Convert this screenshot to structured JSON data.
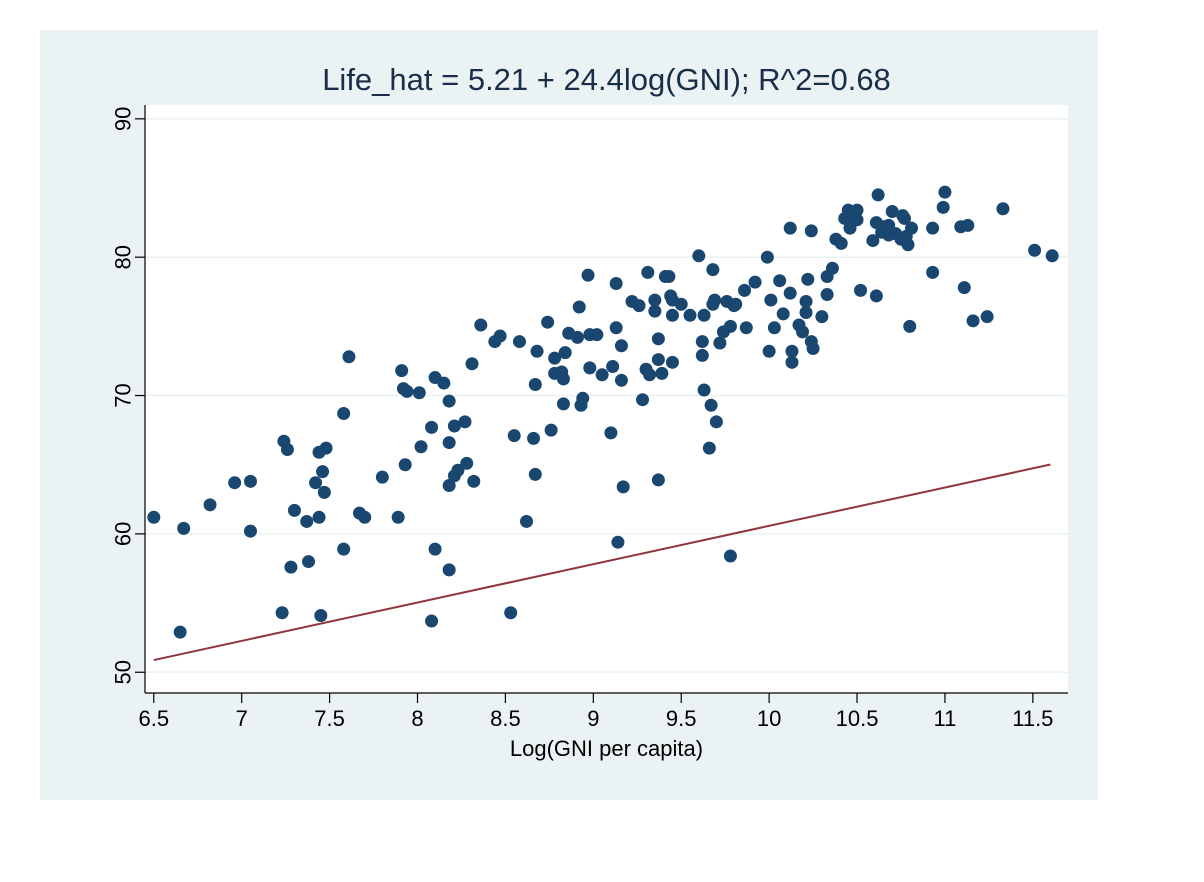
{
  "colors": {
    "panel_background": "#eaf2f3",
    "plot_background": "#ffffff",
    "grid": "#eaf2f3",
    "axis": "#000000",
    "point": "#1a476f",
    "fit_line": "#90353b",
    "title": "#1a2e4a"
  },
  "chart_data": {
    "type": "scatter",
    "title": "Life_hat = 5.21 + 24.4log(GNI); R^2=0.68",
    "xlabel": "Log(GNI per capita)",
    "ylabel": "",
    "xlim": [
      6.45,
      11.7
    ],
    "ylim": [
      48.5,
      91
    ],
    "xticks": [
      "6.5",
      "7",
      "7.5",
      "8",
      "8.5",
      "9",
      "9.5",
      "10",
      "10.5",
      "11",
      "11.5"
    ],
    "yticks": [
      "50",
      "60",
      "70",
      "80",
      "90"
    ],
    "grid": true,
    "legend": "none",
    "fit_line": {
      "intercept": 5.21,
      "slope": 24.4,
      "x_range": [
        6.5,
        11.6
      ]
    },
    "points": [
      [
        6.5,
        61.2
      ],
      [
        6.67,
        60.4
      ],
      [
        6.65,
        52.9
      ],
      [
        6.82,
        62.1
      ],
      [
        6.96,
        63.7
      ],
      [
        7.05,
        63.8
      ],
      [
        7.05,
        60.2
      ],
      [
        7.24,
        66.7
      ],
      [
        7.26,
        66.1
      ],
      [
        7.23,
        54.3
      ],
      [
        7.28,
        57.6
      ],
      [
        7.3,
        61.7
      ],
      [
        7.37,
        60.9
      ],
      [
        7.38,
        58.0
      ],
      [
        7.42,
        63.7
      ],
      [
        7.44,
        61.2
      ],
      [
        7.44,
        65.9
      ],
      [
        7.46,
        64.5
      ],
      [
        7.47,
        63.0
      ],
      [
        7.48,
        66.2
      ],
      [
        7.45,
        54.1
      ],
      [
        7.58,
        68.7
      ],
      [
        7.61,
        72.8
      ],
      [
        7.58,
        58.9
      ],
      [
        7.67,
        61.5
      ],
      [
        7.7,
        61.2
      ],
      [
        7.8,
        64.1
      ],
      [
        7.89,
        61.2
      ],
      [
        7.91,
        71.8
      ],
      [
        7.92,
        70.5
      ],
      [
        7.94,
        70.3
      ],
      [
        7.93,
        65.0
      ],
      [
        8.01,
        70.2
      ],
      [
        8.02,
        66.3
      ],
      [
        8.08,
        53.7
      ],
      [
        8.08,
        67.7
      ],
      [
        8.1,
        71.3
      ],
      [
        8.1,
        58.9
      ],
      [
        8.15,
        70.9
      ],
      [
        8.18,
        69.6
      ],
      [
        8.18,
        66.6
      ],
      [
        8.18,
        63.5
      ],
      [
        8.18,
        57.4
      ],
      [
        8.21,
        64.2
      ],
      [
        8.21,
        67.8
      ],
      [
        8.23,
        64.6
      ],
      [
        8.27,
        68.1
      ],
      [
        8.28,
        65.1
      ],
      [
        8.31,
        72.3
      ],
      [
        8.32,
        63.8
      ],
      [
        8.36,
        75.1
      ],
      [
        8.44,
        73.9
      ],
      [
        8.47,
        74.3
      ],
      [
        8.53,
        54.3
      ],
      [
        8.55,
        67.1
      ],
      [
        8.58,
        73.9
      ],
      [
        8.62,
        60.9
      ],
      [
        8.66,
        66.9
      ],
      [
        8.67,
        64.3
      ],
      [
        8.67,
        70.8
      ],
      [
        8.68,
        73.2
      ],
      [
        8.74,
        75.3
      ],
      [
        8.76,
        67.5
      ],
      [
        8.78,
        72.7
      ],
      [
        8.78,
        71.6
      ],
      [
        8.82,
        71.7
      ],
      [
        8.83,
        71.2
      ],
      [
        8.84,
        73.1
      ],
      [
        8.83,
        69.4
      ],
      [
        8.86,
        74.5
      ],
      [
        8.91,
        74.2
      ],
      [
        8.92,
        76.4
      ],
      [
        8.93,
        69.3
      ],
      [
        8.94,
        69.8
      ],
      [
        8.97,
        78.7
      ],
      [
        8.98,
        74.4
      ],
      [
        8.98,
        72.0
      ],
      [
        9.02,
        74.4
      ],
      [
        9.05,
        71.5
      ],
      [
        9.1,
        67.3
      ],
      [
        9.11,
        72.1
      ],
      [
        9.13,
        74.9
      ],
      [
        9.13,
        78.1
      ],
      [
        9.14,
        59.4
      ],
      [
        9.16,
        73.6
      ],
      [
        9.16,
        71.1
      ],
      [
        9.17,
        63.4
      ],
      [
        9.22,
        76.8
      ],
      [
        9.26,
        76.5
      ],
      [
        9.28,
        69.7
      ],
      [
        9.3,
        71.9
      ],
      [
        9.31,
        78.9
      ],
      [
        9.32,
        71.5
      ],
      [
        9.35,
        76.9
      ],
      [
        9.35,
        76.1
      ],
      [
        9.37,
        72.6
      ],
      [
        9.37,
        74.1
      ],
      [
        9.37,
        63.9
      ],
      [
        9.39,
        71.6
      ],
      [
        9.41,
        78.6
      ],
      [
        9.43,
        78.6
      ],
      [
        9.44,
        77.2
      ],
      [
        9.45,
        76.9
      ],
      [
        9.45,
        72.4
      ],
      [
        9.45,
        75.8
      ],
      [
        9.5,
        76.6
      ],
      [
        9.55,
        75.8
      ],
      [
        9.6,
        80.1
      ],
      [
        9.62,
        73.9
      ],
      [
        9.62,
        72.9
      ],
      [
        9.63,
        70.4
      ],
      [
        9.63,
        75.8
      ],
      [
        9.66,
        66.2
      ],
      [
        9.67,
        69.3
      ],
      [
        9.68,
        79.1
      ],
      [
        9.68,
        76.6
      ],
      [
        9.69,
        76.9
      ],
      [
        9.7,
        68.1
      ],
      [
        9.72,
        73.8
      ],
      [
        9.74,
        74.6
      ],
      [
        9.76,
        76.8
      ],
      [
        9.78,
        75.0
      ],
      [
        9.78,
        58.4
      ],
      [
        9.8,
        76.5
      ],
      [
        9.81,
        76.6
      ],
      [
        9.86,
        77.6
      ],
      [
        9.87,
        74.9
      ],
      [
        9.92,
        78.2
      ],
      [
        9.99,
        80.0
      ],
      [
        10.0,
        73.2
      ],
      [
        10.01,
        76.9
      ],
      [
        10.03,
        74.9
      ],
      [
        10.06,
        78.3
      ],
      [
        10.08,
        75.9
      ],
      [
        10.12,
        82.1
      ],
      [
        10.12,
        77.4
      ],
      [
        10.13,
        73.2
      ],
      [
        10.13,
        72.4
      ],
      [
        10.17,
        75.1
      ],
      [
        10.19,
        74.6
      ],
      [
        10.21,
        76.8
      ],
      [
        10.21,
        76.0
      ],
      [
        10.22,
        78.4
      ],
      [
        10.24,
        81.9
      ],
      [
        10.24,
        73.9
      ],
      [
        10.25,
        73.4
      ],
      [
        10.3,
        75.7
      ],
      [
        10.33,
        78.6
      ],
      [
        10.33,
        77.3
      ],
      [
        10.36,
        79.2
      ],
      [
        10.38,
        81.3
      ],
      [
        10.41,
        81.0
      ],
      [
        10.43,
        82.8
      ],
      [
        10.45,
        83.4
      ],
      [
        10.46,
        82.1
      ],
      [
        10.46,
        82.6
      ],
      [
        10.48,
        83.1
      ],
      [
        10.5,
        83.4
      ],
      [
        10.5,
        82.7
      ],
      [
        10.52,
        77.6
      ],
      [
        10.59,
        81.2
      ],
      [
        10.61,
        77.2
      ],
      [
        10.61,
        82.5
      ],
      [
        10.62,
        84.5
      ],
      [
        10.64,
        81.8
      ],
      [
        10.65,
        82.2
      ],
      [
        10.68,
        81.6
      ],
      [
        10.68,
        82.3
      ],
      [
        10.7,
        83.3
      ],
      [
        10.72,
        81.7
      ],
      [
        10.75,
        81.3
      ],
      [
        10.76,
        83.0
      ],
      [
        10.77,
        82.8
      ],
      [
        10.78,
        81.5
      ],
      [
        10.79,
        80.9
      ],
      [
        10.8,
        75.0
      ],
      [
        10.81,
        82.1
      ],
      [
        10.93,
        82.1
      ],
      [
        10.93,
        78.9
      ],
      [
        10.99,
        83.6
      ],
      [
        11.0,
        84.7
      ],
      [
        11.09,
        82.2
      ],
      [
        11.11,
        77.8
      ],
      [
        11.13,
        82.3
      ],
      [
        11.16,
        75.4
      ],
      [
        11.24,
        75.7
      ],
      [
        11.33,
        83.5
      ],
      [
        11.51,
        80.5
      ],
      [
        11.61,
        80.1
      ]
    ]
  }
}
